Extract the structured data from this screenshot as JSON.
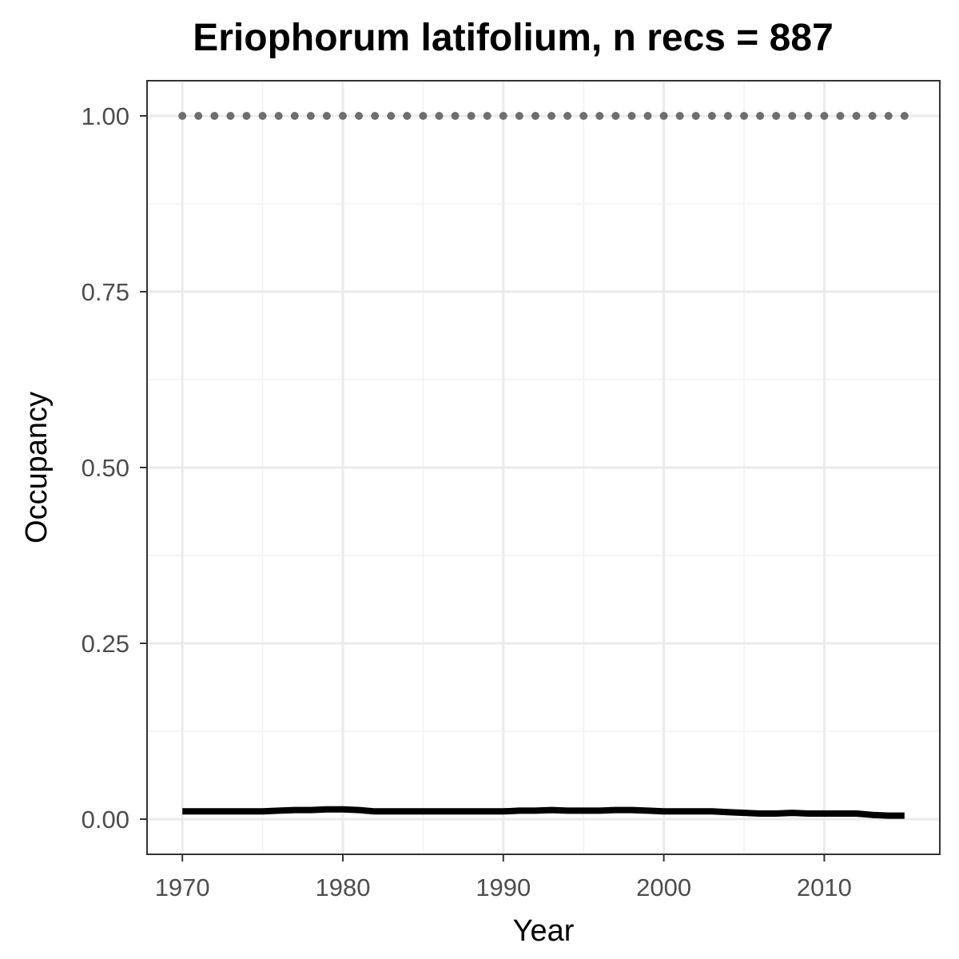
{
  "chart_data": {
    "type": "line",
    "title": "Eriophorum latifolium, n recs = 887",
    "xlabel": "Year",
    "ylabel": "Occupancy",
    "xlim": [
      1967.8,
      2017.2
    ],
    "ylim": [
      -0.05,
      1.05
    ],
    "x_ticks": [
      1970,
      1980,
      1990,
      2000,
      2010
    ],
    "x_tick_labels": [
      "1970",
      "1980",
      "1990",
      "2000",
      "2010"
    ],
    "y_ticks": [
      0,
      0.25,
      0.5,
      0.75,
      1.0
    ],
    "y_tick_labels": [
      "0.00",
      "0.25",
      "0.50",
      "0.75",
      "1.00"
    ],
    "grid": true,
    "legend": "none",
    "series": [
      {
        "style": "solid",
        "color": "#000000",
        "x": [
          1970,
          1971,
          1972,
          1973,
          1974,
          1975,
          1976,
          1977,
          1978,
          1979,
          1980,
          1981,
          1982,
          1983,
          1984,
          1985,
          1986,
          1987,
          1988,
          1989,
          1990,
          1991,
          1992,
          1993,
          1994,
          1995,
          1996,
          1997,
          1998,
          1999,
          2000,
          2001,
          2002,
          2003,
          2004,
          2005,
          2006,
          2007,
          2008,
          2009,
          2010,
          2011,
          2012,
          2013,
          2014,
          2015
        ],
        "values": [
          0.011,
          0.011,
          0.011,
          0.011,
          0.011,
          0.011,
          0.012,
          0.013,
          0.013,
          0.014,
          0.014,
          0.013,
          0.011,
          0.011,
          0.011,
          0.011,
          0.011,
          0.011,
          0.011,
          0.011,
          0.011,
          0.012,
          0.012,
          0.013,
          0.012,
          0.012,
          0.012,
          0.013,
          0.013,
          0.012,
          0.011,
          0.011,
          0.011,
          0.011,
          0.01,
          0.009,
          0.008,
          0.008,
          0.009,
          0.008,
          0.008,
          0.008,
          0.008,
          0.006,
          0.005,
          0.005
        ]
      },
      {
        "style": "dotted",
        "color": "#6e6e6e",
        "x": [
          1970,
          1971,
          1972,
          1973,
          1974,
          1975,
          1976,
          1977,
          1978,
          1979,
          1980,
          1981,
          1982,
          1983,
          1984,
          1985,
          1986,
          1987,
          1988,
          1989,
          1990,
          1991,
          1992,
          1993,
          1994,
          1995,
          1996,
          1997,
          1998,
          1999,
          2000,
          2001,
          2002,
          2003,
          2004,
          2005,
          2006,
          2007,
          2008,
          2009,
          2010,
          2011,
          2012,
          2013,
          2014,
          2015
        ],
        "values": [
          1,
          1,
          1,
          1,
          1,
          1,
          1,
          1,
          1,
          1,
          1,
          1,
          1,
          1,
          1,
          1,
          1,
          1,
          1,
          1,
          1,
          1,
          1,
          1,
          1,
          1,
          1,
          1,
          1,
          1,
          1,
          1,
          1,
          1,
          1,
          1,
          1,
          1,
          1,
          1,
          1,
          1,
          1,
          1,
          1,
          1
        ]
      }
    ]
  }
}
